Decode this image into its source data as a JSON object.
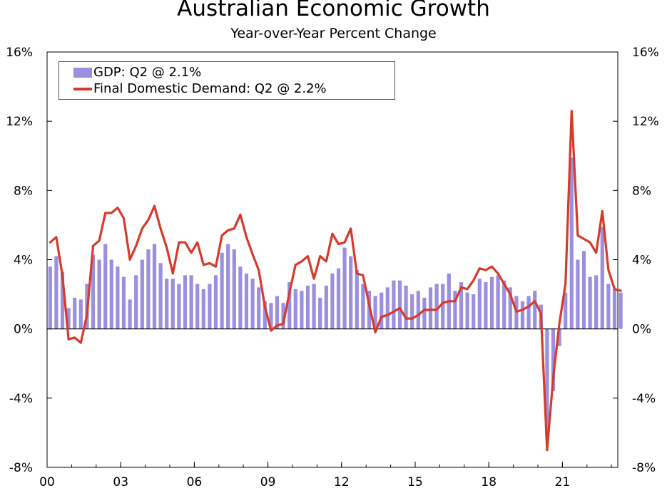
{
  "chart_data": {
    "type": "bar+line",
    "title": "Australian Economic Growth",
    "subtitle": "Year-over-Year Percent Change",
    "ylim": [
      -8,
      16
    ],
    "y_ticks": [
      "16%",
      "12%",
      "8%",
      "4%",
      "0%",
      "-4%",
      "-8%"
    ],
    "y_tick_values": [
      16,
      12,
      8,
      4,
      0,
      -4,
      -8
    ],
    "x_ticks": [
      "00",
      "03",
      "06",
      "09",
      "12",
      "15",
      "18",
      "21"
    ],
    "x_tick_years": [
      2000,
      2003,
      2006,
      2009,
      2012,
      2015,
      2018,
      2021
    ],
    "x_start": "2000 Q1",
    "frequency": "quarterly",
    "legend": [
      {
        "label": "GDP: Q2 @ 2.1%",
        "kind": "bar",
        "color": "#9b8fe0"
      },
      {
        "label": "Final Domestic Demand: Q2 @ 2.2%",
        "kind": "line",
        "color": "#d63a2a"
      }
    ],
    "legend_position": "top-left",
    "series": [
      {
        "name": "GDP",
        "type": "bar",
        "color": "#9b8fe0",
        "values": [
          3.6,
          4.2,
          3.3,
          1.2,
          1.8,
          1.7,
          2.6,
          4.3,
          4.0,
          4.9,
          4.0,
          3.6,
          3.0,
          1.7,
          3.1,
          4.0,
          4.6,
          4.9,
          3.8,
          2.9,
          2.9,
          2.6,
          3.1,
          3.1,
          2.6,
          2.3,
          2.6,
          3.1,
          4.4,
          4.9,
          4.6,
          3.6,
          3.2,
          2.9,
          2.4,
          1.6,
          1.5,
          1.9,
          1.5,
          2.7,
          2.3,
          2.2,
          2.5,
          2.6,
          1.8,
          2.5,
          3.2,
          3.5,
          4.7,
          4.2,
          3.4,
          2.6,
          2.2,
          1.9,
          2.1,
          2.4,
          2.8,
          2.8,
          2.5,
          2.0,
          2.2,
          1.8,
          2.4,
          2.6,
          2.6,
          3.2,
          2.2,
          2.7,
          2.1,
          2.0,
          2.9,
          2.7,
          3.0,
          3.1,
          2.8,
          2.4,
          1.9,
          1.6,
          1.9,
          2.2,
          1.4,
          -6.2,
          -3.6,
          -1.0,
          2.1,
          9.9,
          4.0,
          4.5,
          3.0,
          3.1,
          5.9,
          2.6,
          2.3,
          2.1
        ]
      },
      {
        "name": "Final Domestic Demand",
        "type": "line",
        "color": "#d63a2a",
        "values": [
          5.0,
          5.3,
          3.1,
          -0.6,
          -0.5,
          -0.8,
          0.8,
          4.8,
          5.1,
          6.7,
          6.7,
          7.0,
          6.4,
          4.0,
          4.8,
          5.8,
          6.3,
          7.1,
          5.8,
          4.7,
          3.2,
          5.0,
          5.0,
          4.4,
          5.0,
          3.7,
          3.8,
          3.6,
          5.4,
          5.7,
          5.8,
          6.6,
          5.3,
          4.3,
          3.4,
          1.3,
          -0.1,
          0.2,
          0.3,
          2.1,
          3.7,
          3.9,
          4.2,
          2.9,
          4.2,
          3.9,
          5.5,
          4.9,
          5.0,
          5.8,
          3.2,
          3.1,
          1.4,
          -0.2,
          0.7,
          0.8,
          1.0,
          1.2,
          0.6,
          0.6,
          0.8,
          1.1,
          1.1,
          1.1,
          1.5,
          1.6,
          1.6,
          2.4,
          2.3,
          2.8,
          3.5,
          3.4,
          3.6,
          3.2,
          2.6,
          2.0,
          1.0,
          1.1,
          1.3,
          1.6,
          0.9,
          -7.0,
          -2.8,
          0.3,
          2.6,
          12.6,
          5.4,
          5.2,
          5.0,
          4.4,
          6.8,
          3.4,
          2.3,
          2.2
        ]
      }
    ]
  }
}
